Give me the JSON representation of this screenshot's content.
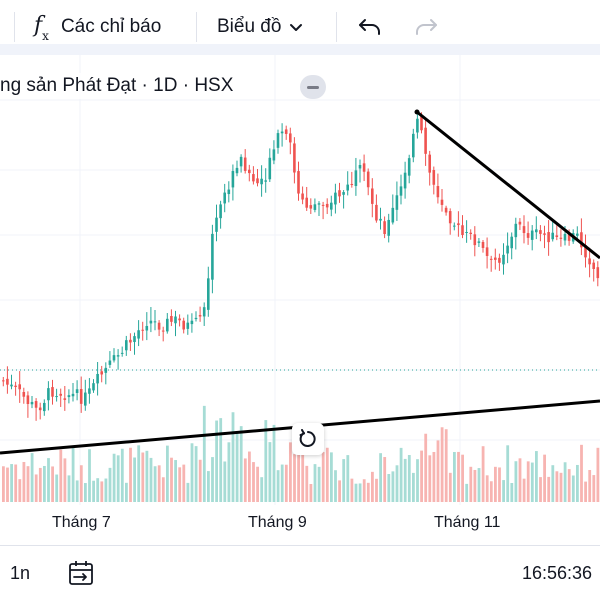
{
  "toolbar": {
    "indicators_label": "Các chỉ báo",
    "chart_type_label": "Biểu đồ"
  },
  "chart": {
    "title": "ng sản Phát Đạt · 1D · HSX",
    "x_labels": [
      "Tháng 7",
      "Tháng 9",
      "Tháng 11"
    ],
    "colors": {
      "up": "#26a69a",
      "down": "#ef5350",
      "vol_up": "#a6dcd5",
      "vol_down": "#f7b4b1"
    }
  },
  "bottom": {
    "range": "1n",
    "time": "16:56:36"
  },
  "chart_data": {
    "type": "candlestick",
    "title": "ng sản Phát Đạt · 1D · HSX",
    "x_ticks": [
      "Tháng 7",
      "Tháng 9",
      "Tháng 11"
    ],
    "trend_lines": 2
  }
}
